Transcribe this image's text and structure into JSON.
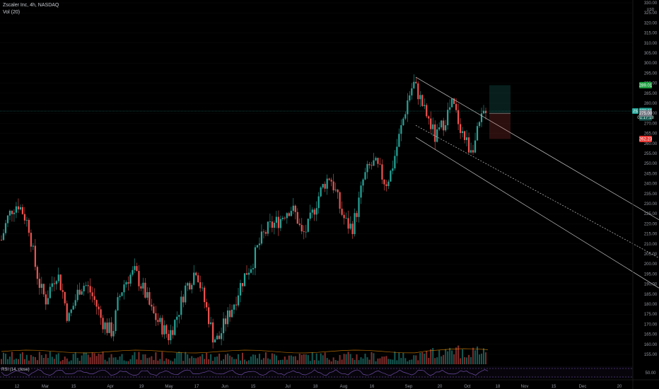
{
  "header": {
    "symbol_line": "Zscaler Inc, 4h, NASDAQ",
    "volume_line": "Vol (20)"
  },
  "rsi": {
    "label": "RSI (14, close)",
    "level_label": "50.00"
  },
  "colors": {
    "up": "#26a69a",
    "down": "#ef5350",
    "accent": "#2962ff",
    "rsi": "#7e57c2"
  },
  "chart_data": {
    "type": "candlestick",
    "ylim": [
      155,
      330
    ],
    "currency": "USD",
    "yticks": [
      "330.00",
      "325.00",
      "320.00",
      "315.00",
      "310.00",
      "305.00",
      "300.00",
      "295.00",
      "290.00",
      "285.00",
      "280.00",
      "275.00",
      "270.00",
      "265.00",
      "260.00",
      "255.00",
      "250.00",
      "245.00",
      "240.00",
      "235.00",
      "230.00",
      "225.00",
      "220.00",
      "215.00",
      "210.00",
      "205.00",
      "200.00",
      "195.00",
      "190.00",
      "185.00",
      "180.00",
      "175.00",
      "170.00",
      "165.00",
      "160.00",
      "155.00"
    ],
    "xticks": [
      "12",
      "Mar",
      "15",
      "Apr",
      "19",
      "May",
      "17",
      "Jun",
      "15",
      "Jul",
      "18",
      "Aug",
      "16",
      "Sep",
      "20",
      "Oct",
      "18",
      "Nov",
      "15",
      "Dec",
      "20"
    ],
    "price_labels": {
      "target": "289.01",
      "last": "276.11",
      "countdown": "01:17:18",
      "symbol_tag": "ZS",
      "entry": "275.00",
      "stop": "262.23"
    },
    "series": [
      {
        "name": "price",
        "values": [
          212,
          222,
          228,
          230,
          225,
          218,
          200,
          188,
          182,
          190,
          196,
          186,
          172,
          180,
          188,
          190,
          186,
          180,
          172,
          168,
          166,
          182,
          190,
          194,
          196,
          190,
          184,
          176,
          172,
          168,
          164,
          170,
          178,
          188,
          192,
          198,
          186,
          176,
          164,
          162,
          170,
          176,
          182,
          190,
          196,
          200,
          208,
          214,
          218,
          220,
          222,
          226,
          228,
          224,
          214,
          218,
          226,
          234,
          240,
          244,
          236,
          226,
          220,
          218,
          228,
          242,
          248,
          250,
          246,
          240,
          246,
          258,
          270,
          282,
          290,
          284,
          276,
          270,
          262,
          268,
          274,
          280,
          272,
          264,
          258,
          260,
          270,
          278
        ]
      }
    ]
  }
}
